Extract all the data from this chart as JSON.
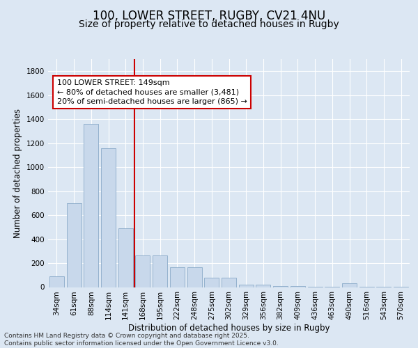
{
  "title": "100, LOWER STREET, RUGBY, CV21 4NU",
  "subtitle": "Size of property relative to detached houses in Rugby",
  "xlabel": "Distribution of detached houses by size in Rugby",
  "ylabel": "Number of detached properties",
  "categories": [
    "34sqm",
    "61sqm",
    "88sqm",
    "114sqm",
    "141sqm",
    "168sqm",
    "195sqm",
    "222sqm",
    "248sqm",
    "275sqm",
    "302sqm",
    "329sqm",
    "356sqm",
    "382sqm",
    "409sqm",
    "436sqm",
    "463sqm",
    "490sqm",
    "516sqm",
    "543sqm",
    "570sqm"
  ],
  "values": [
    90,
    700,
    1360,
    1160,
    490,
    265,
    265,
    165,
    165,
    80,
    80,
    20,
    20,
    10,
    10,
    5,
    5,
    30,
    5,
    5,
    5
  ],
  "bar_color": "#c8d8eb",
  "bar_edge_color": "#8aaac8",
  "vline_x": 4.5,
  "vline_color": "#cc0000",
  "annotation_text": "100 LOWER STREET: 149sqm\n← 80% of detached houses are smaller (3,481)\n20% of semi-detached houses are larger (865) →",
  "annotation_box_facecolor": "#ffffff",
  "annotation_box_edgecolor": "#cc0000",
  "ylim": [
    0,
    1900
  ],
  "yticks": [
    0,
    200,
    400,
    600,
    800,
    1000,
    1200,
    1400,
    1600,
    1800
  ],
  "background_color": "#dce7f3",
  "grid_color": "#ffffff",
  "footer": "Contains HM Land Registry data © Crown copyright and database right 2025.\nContains public sector information licensed under the Open Government Licence v3.0.",
  "title_fontsize": 12,
  "subtitle_fontsize": 10,
  "axis_label_fontsize": 8.5,
  "tick_fontsize": 7.5,
  "annotation_fontsize": 8,
  "footer_fontsize": 6.5
}
